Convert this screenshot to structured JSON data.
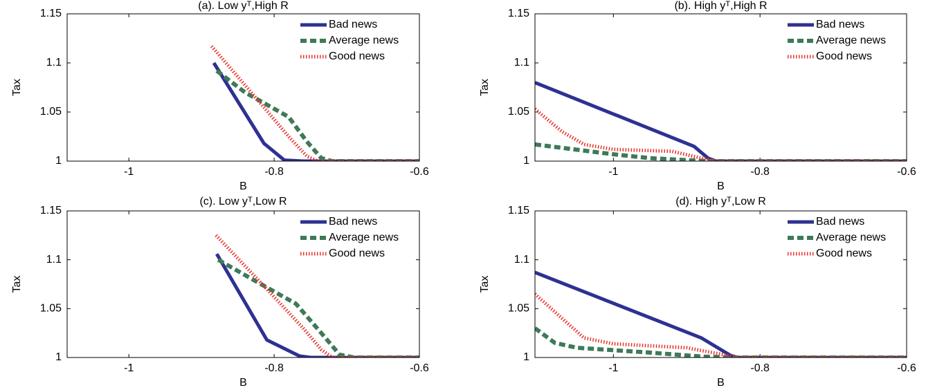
{
  "chart_data": [
    {
      "type": "line",
      "title": "(a). Low yᵀ,High R",
      "xlabel": "B",
      "ylabel": "Tax",
      "xlim": [
        -1.085,
        -0.6
      ],
      "ylim": [
        1,
        1.15
      ],
      "xticks": [
        -1,
        -0.8,
        -0.6
      ],
      "yticks": [
        1,
        1.05,
        1.1,
        1.15
      ],
      "legend": "upper right",
      "series": [
        {
          "name": "Bad news",
          "color": "#2e3192",
          "linestyle": "solid",
          "x": [
            -0.883,
            -0.814,
            -0.786,
            -0.76,
            -0.6
          ],
          "values": [
            1.1,
            1.018,
            1.001,
            1.0,
            1.0
          ]
        },
        {
          "name": "Average news",
          "color": "#3e7a58",
          "linestyle": "dashed",
          "x": [
            -0.879,
            -0.84,
            -0.78,
            -0.755,
            -0.735,
            -0.72,
            -0.6
          ],
          "values": [
            1.092,
            1.07,
            1.045,
            1.02,
            1.003,
            1.0,
            1.0
          ]
        },
        {
          "name": "Good news",
          "color": "#e8302a",
          "linestyle": "dotted",
          "x": [
            -0.886,
            -0.82,
            -0.78,
            -0.755,
            -0.74,
            -0.6
          ],
          "values": [
            1.117,
            1.06,
            1.025,
            1.005,
            1.0,
            1.0
          ]
        }
      ]
    },
    {
      "type": "line",
      "title": "(b). High yᵀ,High R",
      "xlabel": "B",
      "ylabel": "Tax",
      "xlim": [
        -1.107,
        -0.6
      ],
      "ylim": [
        1,
        1.15
      ],
      "xticks": [
        -1,
        -0.8,
        -0.6
      ],
      "yticks": [
        1,
        1.05,
        1.1,
        1.15
      ],
      "legend": "upper right",
      "series": [
        {
          "name": "Bad news",
          "color": "#2e3192",
          "linestyle": "solid",
          "x": [
            -1.107,
            -0.89,
            -0.871,
            -0.86,
            -0.6
          ],
          "values": [
            1.08,
            1.015,
            1.003,
            1.0,
            1.0
          ]
        },
        {
          "name": "Average news",
          "color": "#3e7a58",
          "linestyle": "dashed",
          "x": [
            -1.107,
            -1.0,
            -0.95,
            -0.9,
            -0.87,
            -0.6
          ],
          "values": [
            1.017,
            1.007,
            1.003,
            1.001,
            1.0,
            1.0
          ]
        },
        {
          "name": "Good news",
          "color": "#e8302a",
          "linestyle": "dotted",
          "x": [
            -1.107,
            -1.07,
            -1.04,
            -1.0,
            -0.92,
            -0.88,
            -0.86,
            -0.6
          ],
          "values": [
            1.053,
            1.03,
            1.017,
            1.012,
            1.01,
            1.003,
            1.0,
            1.0
          ]
        }
      ]
    },
    {
      "type": "line",
      "title": "(c). Low yᵀ,Low R",
      "xlabel": "B",
      "ylabel": "Tax",
      "xlim": [
        -1.085,
        -0.6
      ],
      "ylim": [
        1,
        1.15
      ],
      "xticks": [
        -1,
        -0.8,
        -0.6
      ],
      "yticks": [
        1,
        1.05,
        1.1,
        1.15
      ],
      "legend": "upper right",
      "series": [
        {
          "name": "Bad news",
          "color": "#2e3192",
          "linestyle": "solid",
          "x": [
            -0.879,
            -0.81,
            -0.765,
            -0.75,
            -0.6
          ],
          "values": [
            1.106,
            1.018,
            1.0015,
            1.0,
            1.0
          ]
        },
        {
          "name": "Average news",
          "color": "#3e7a58",
          "linestyle": "dashed",
          "x": [
            -0.877,
            -0.83,
            -0.77,
            -0.735,
            -0.71,
            -0.69,
            -0.6
          ],
          "values": [
            1.1,
            1.08,
            1.055,
            1.025,
            1.003,
            1.0,
            1.0
          ]
        },
        {
          "name": "Good news",
          "color": "#e8302a",
          "linestyle": "dotted",
          "x": [
            -0.88,
            -0.81,
            -0.76,
            -0.735,
            -0.72,
            -0.6
          ],
          "values": [
            1.125,
            1.07,
            1.03,
            1.008,
            1.0,
            1.0
          ]
        }
      ]
    },
    {
      "type": "line",
      "title": "(d). High yᵀ,Low R",
      "xlabel": "B",
      "ylabel": "Tax",
      "xlim": [
        -1.107,
        -0.6
      ],
      "ylim": [
        1,
        1.15
      ],
      "xticks": [
        -1,
        -0.8,
        -0.6
      ],
      "yticks": [
        1,
        1.05,
        1.1,
        1.15
      ],
      "legend": "upper right",
      "series": [
        {
          "name": "Bad news",
          "color": "#2e3192",
          "linestyle": "solid",
          "x": [
            -1.107,
            -0.88,
            -0.84,
            -0.83,
            -0.6
          ],
          "values": [
            1.087,
            1.02,
            1.002,
            1.0,
            1.0
          ]
        },
        {
          "name": "Average news",
          "color": "#3e7a58",
          "linestyle": "dashed",
          "x": [
            -1.107,
            -1.08,
            -1.05,
            -0.95,
            -0.88,
            -0.84,
            -0.6
          ],
          "values": [
            1.03,
            1.015,
            1.01,
            1.005,
            1.001,
            1.0,
            1.0
          ]
        },
        {
          "name": "Good news",
          "color": "#e8302a",
          "linestyle": "dotted",
          "x": [
            -1.107,
            -1.07,
            -1.04,
            -1.0,
            -0.9,
            -0.85,
            -0.83,
            -0.6
          ],
          "values": [
            1.065,
            1.04,
            1.02,
            1.014,
            1.01,
            1.003,
            1.0,
            1.0
          ]
        }
      ]
    }
  ]
}
